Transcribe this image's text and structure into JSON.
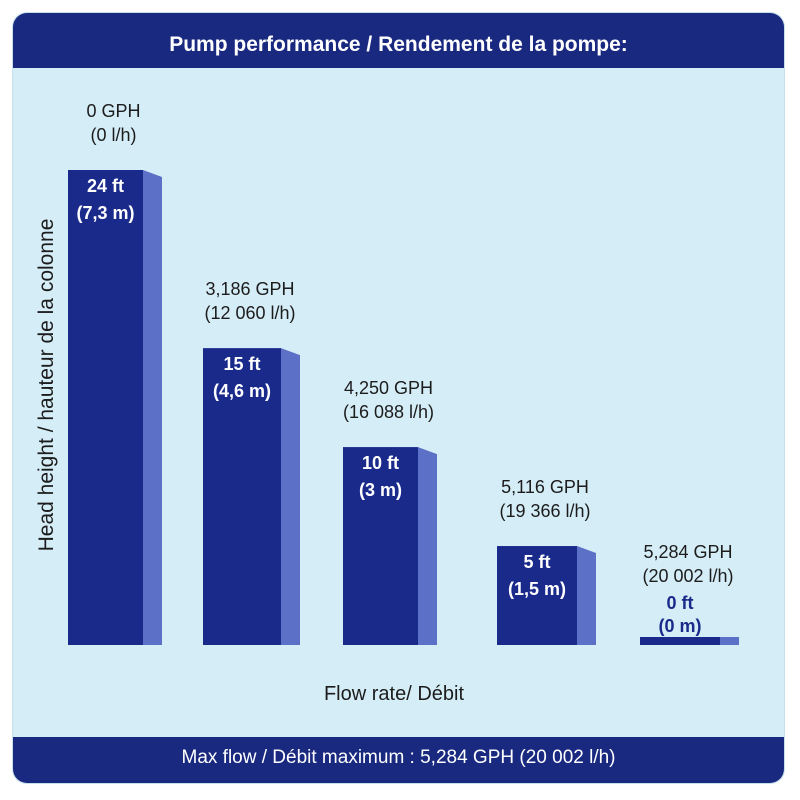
{
  "chart": {
    "title": "Pump performance / Rendement de la pompe:",
    "footer": "Max flow / Débit maximum : 5,284 GPH (20 002 l/h)"
  },
  "colors": {
    "bar_front": "#1a2a8a",
    "bar_side": "#5b70c6",
    "background": "#d5edf7",
    "banner": "#1a2980"
  },
  "chart_data": {
    "type": "bar",
    "title": "Pump performance / Rendement de la pompe:",
    "xlabel": "Flow rate/ Débit",
    "ylabel": "Head height / hauteur de la colonne",
    "categories": [
      "0 GPH (0 l/h)",
      "3,186 GPH (12 060 l/h)",
      "4,250 GPH (16 088 l/h)",
      "5,116 GPH (19 366 l/h)",
      "5,284 GPH (20 002 l/h)"
    ],
    "values": [
      24,
      15,
      10,
      5,
      0
    ],
    "unit": "ft",
    "ylim": [
      0,
      24
    ],
    "bars": [
      {
        "flow_gph": "0 GPH",
        "flow_lh": "(0 l/h)",
        "head_ft": "24 ft",
        "head_m": "(7,3 m)",
        "value": 24
      },
      {
        "flow_gph": "3,186 GPH",
        "flow_lh": "(12 060 l/h)",
        "head_ft": "15 ft",
        "head_m": "(4,6 m)",
        "value": 15
      },
      {
        "flow_gph": "4,250 GPH",
        "flow_lh": "(16 088 l/h)",
        "head_ft": "10 ft",
        "head_m": "(3 m)",
        "value": 10
      },
      {
        "flow_gph": "5,116 GPH",
        "flow_lh": "(19 366 l/h)",
        "head_ft": "5 ft",
        "head_m": "(1,5 m)",
        "value": 5
      },
      {
        "flow_gph": "5,284 GPH",
        "flow_lh": "(20 002 l/h)",
        "head_ft": "0 ft",
        "head_m": "(0 m)",
        "value": 0
      }
    ],
    "grid": false,
    "legend": "none"
  }
}
